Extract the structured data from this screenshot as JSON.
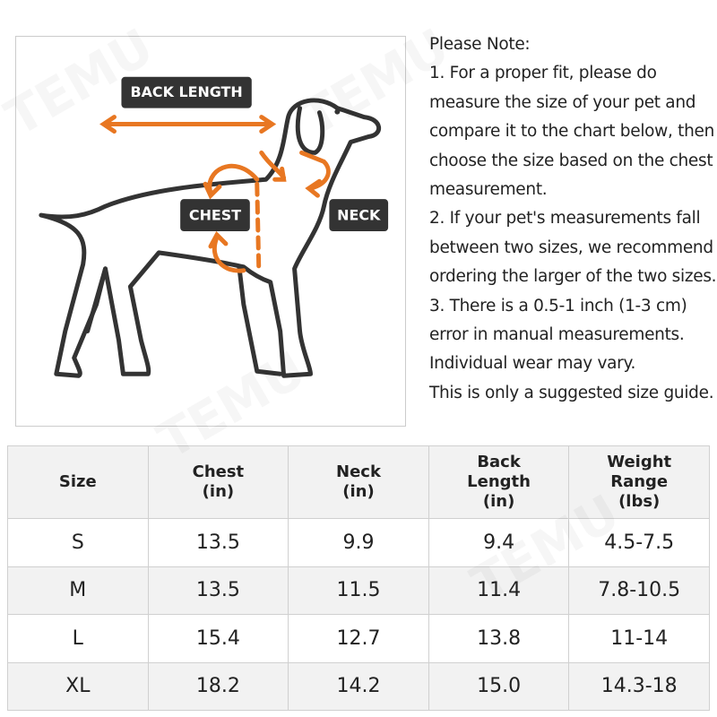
{
  "watermark": "TEMU",
  "diagram": {
    "labels": {
      "back_length": "BACK LENGTH",
      "chest": "CHEST",
      "neck": "NECK"
    }
  },
  "note": {
    "title": "Please Note:",
    "paragraphs": [
      "1. For a proper fit, please do measure the size of your pet and compare it to the chart below, then choose the size based on the chest measurement.",
      "2. If your pet's measurements fall between two sizes, we recommend ordering the larger of the two sizes.",
      "3. There is a 0.5-1 inch (1-3 cm) error in manual measurements.",
      "Individual wear may vary.",
      "This is only a suggested size guide."
    ]
  },
  "table": {
    "header": [
      [
        "Size"
      ],
      [
        "Chest",
        "(in)"
      ],
      [
        "Neck",
        "(in)"
      ],
      [
        "Back",
        "Length",
        "(in)"
      ],
      [
        "Weight",
        "Range",
        "(lbs)"
      ]
    ],
    "rows": [
      [
        "S",
        "13.5",
        "9.9",
        "9.4",
        "4.5-7.5"
      ],
      [
        "M",
        "13.5",
        "11.5",
        "11.4",
        "7.8-10.5"
      ],
      [
        "L",
        "15.4",
        "12.7",
        "13.8",
        "11-14"
      ],
      [
        "XL",
        "18.2",
        "14.2",
        "15.0",
        "14.3-18"
      ]
    ]
  }
}
